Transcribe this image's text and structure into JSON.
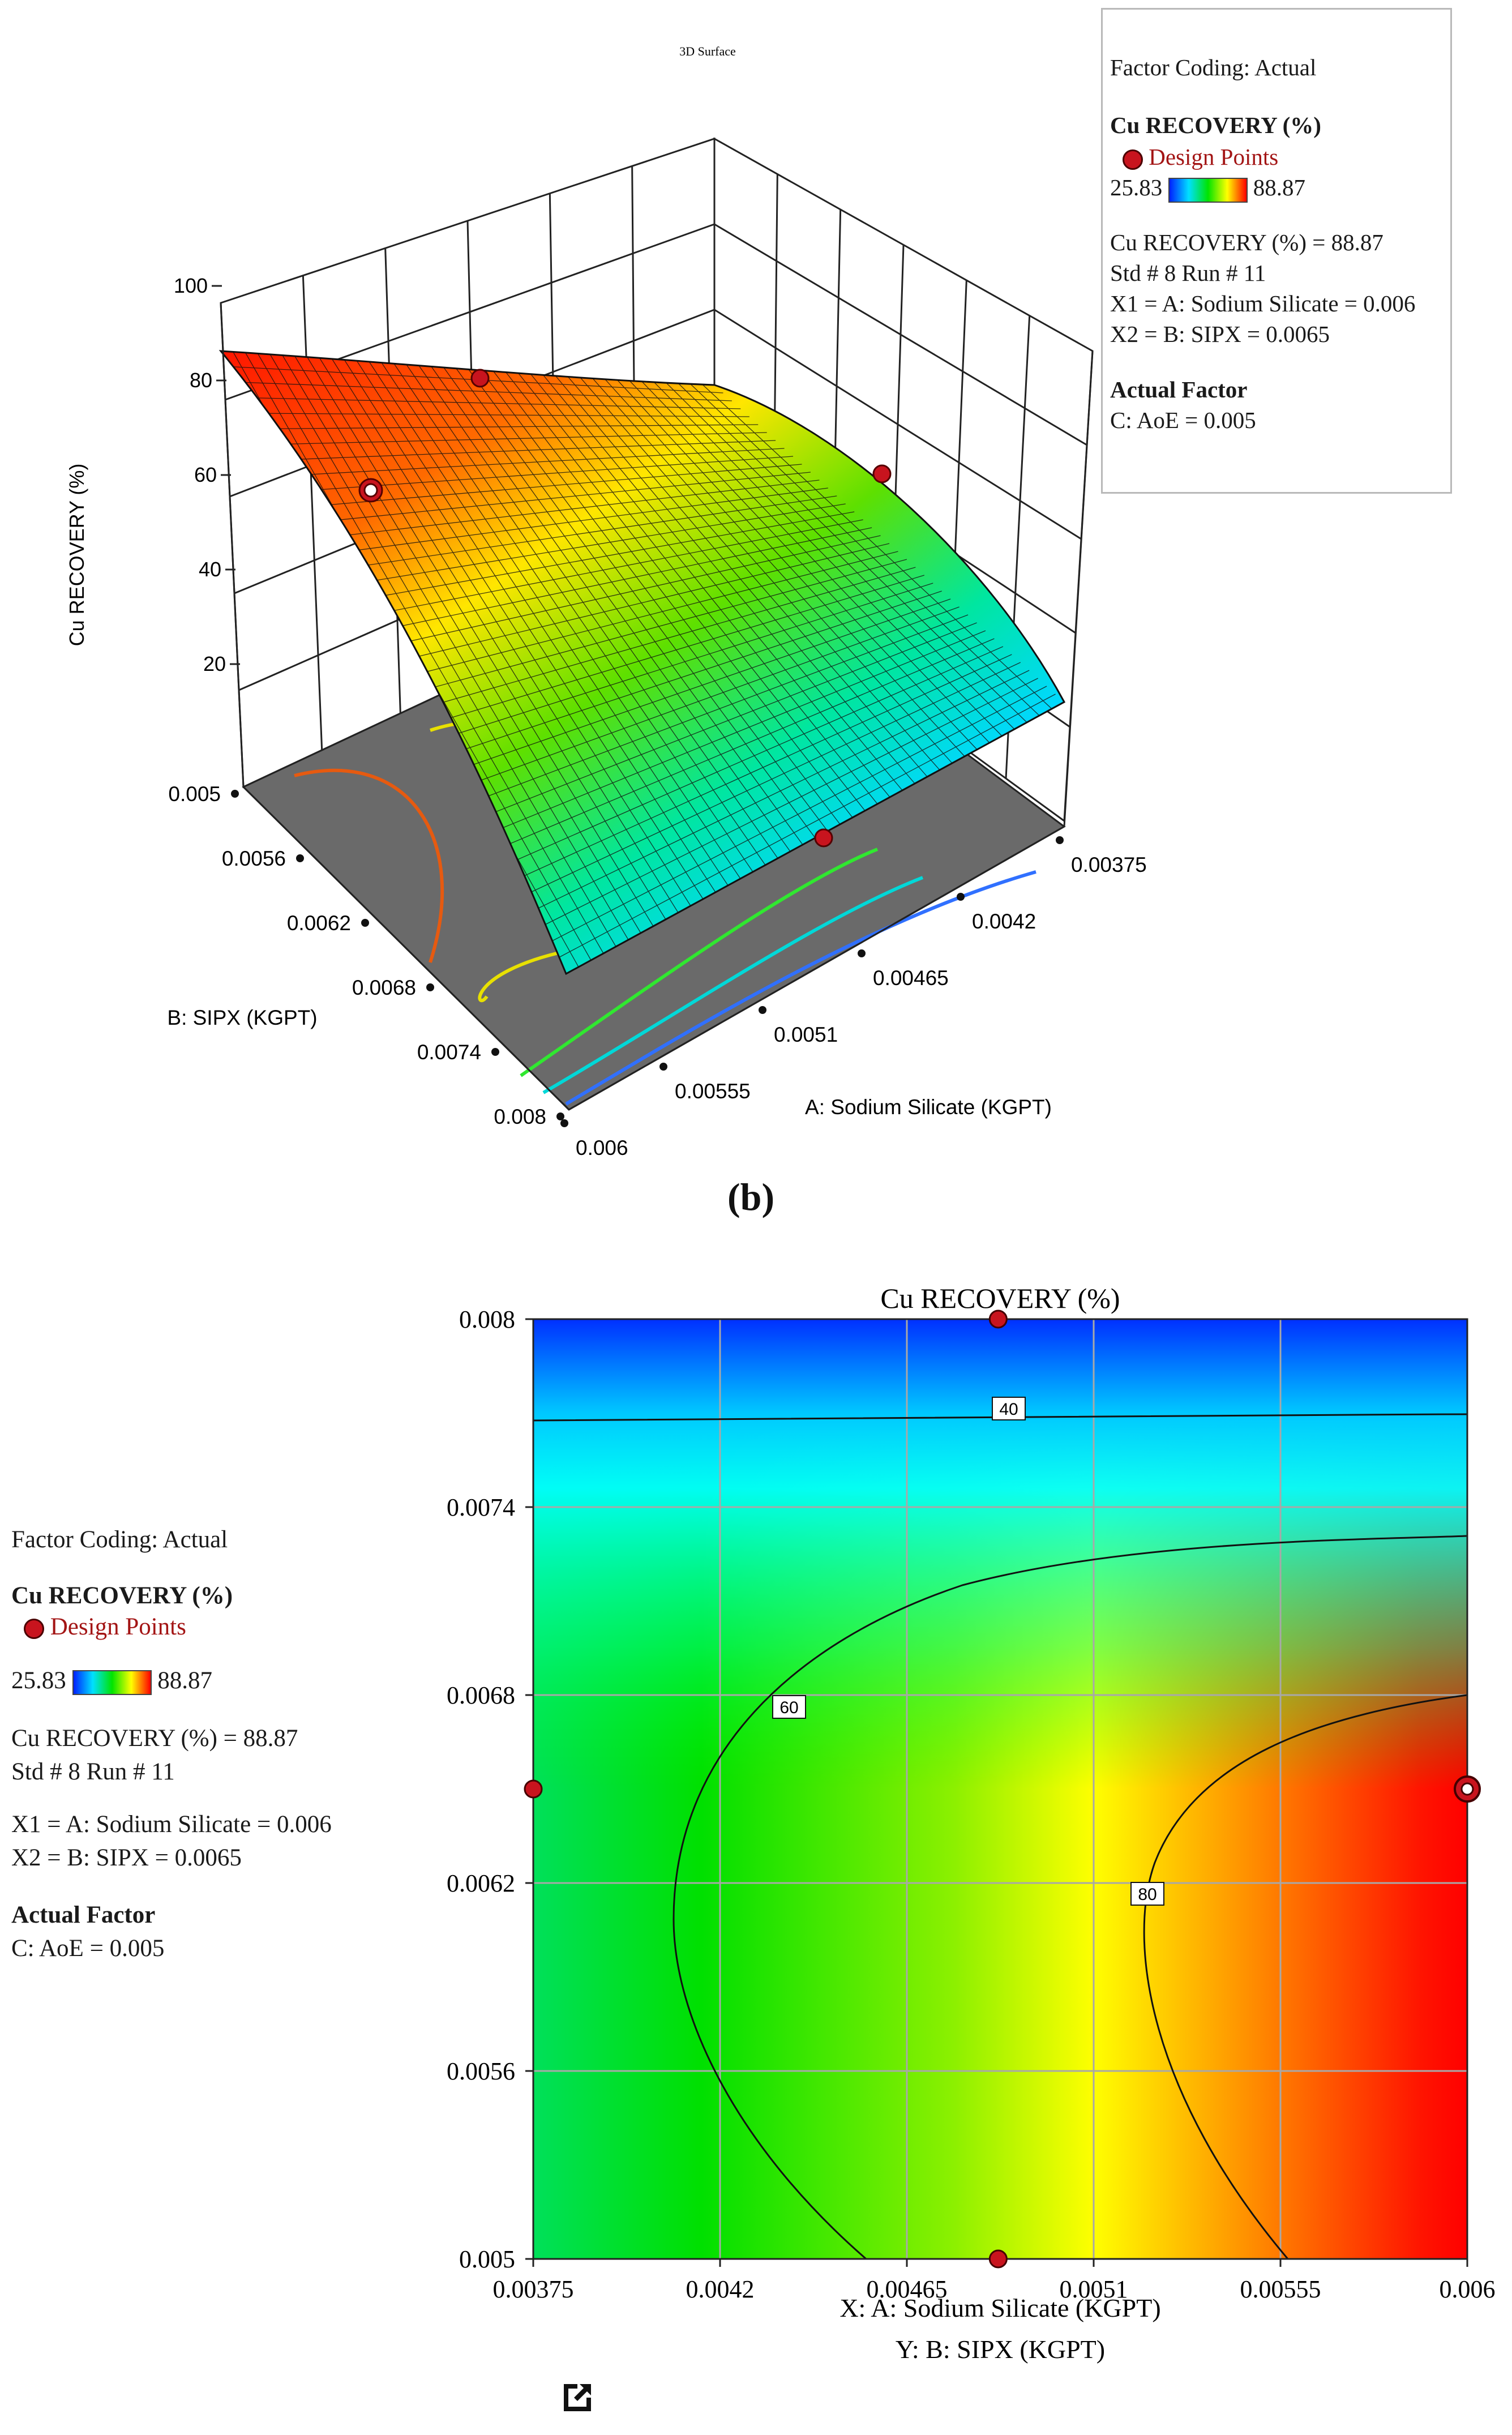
{
  "surface3d": {
    "title": "3D Surface",
    "zlabel": "Cu RECOVERY (%)",
    "z_ticks": [
      "100",
      "80",
      "60",
      "40",
      "20"
    ],
    "xlabel": "A: Sodium Silicate  (KGPT)",
    "x_ticks": [
      "0.00375",
      "0.0042",
      "0.00465",
      "0.0051",
      "0.00555",
      "0.006"
    ],
    "ylabel": "B: SIPX (KGPT)",
    "y_ticks": [
      "0.005",
      "0.0056",
      "0.0062",
      "0.0068",
      "0.0074",
      "0.008"
    ]
  },
  "legend": {
    "factor_coding": "Factor Coding: Actual",
    "response": "Cu RECOVERY (%)",
    "design_points": "Design Points",
    "range_min": "25.83",
    "range_max": "88.87",
    "point_value": "Cu RECOVERY (%) = 88.87",
    "std_run": "Std # 8 Run # 11",
    "x1": "X1 = A: Sodium Silicate  = 0.006",
    "x2": "X2 = B: SIPX = 0.0065",
    "actual_factor": "Actual Factor",
    "aoe": "C: AoE = 0.005"
  },
  "panel_b_label": "(b)",
  "contour": {
    "title": "Cu RECOVERY (%)",
    "xlabel": "X: A: Sodium Silicate  (KGPT)",
    "ylabel": "Y: B: SIPX (KGPT)",
    "x_ticks": [
      "0.00375",
      "0.0042",
      "0.00465",
      "0.0051",
      "0.00555",
      "0.006"
    ],
    "y_ticks": [
      "0.008",
      "0.0074",
      "0.0068",
      "0.0062",
      "0.0056",
      "0.005"
    ],
    "contour_labels": [
      "40",
      "60",
      "80"
    ]
  },
  "chart_data": {
    "type": "heatmap",
    "title": "Cu RECOVERY (%)",
    "xlabel": "A: Sodium Silicate (KGPT)",
    "ylabel": "B: SIPX (KGPT)",
    "xlim": [
      0.00375,
      0.006
    ],
    "ylim": [
      0.005,
      0.008
    ],
    "zlim": [
      25.83,
      88.87
    ],
    "contour_levels": [
      40,
      60,
      80
    ],
    "design_points": [
      {
        "x": 0.00487,
        "y": 0.008
      },
      {
        "x": 0.00487,
        "y": 0.005
      },
      {
        "x": 0.00375,
        "y": 0.0065
      },
      {
        "x": 0.006,
        "y": 0.0065,
        "value": 88.87,
        "selected": true
      }
    ],
    "colors": {
      "low": "#0020ff",
      "high": "#ff0000"
    }
  }
}
